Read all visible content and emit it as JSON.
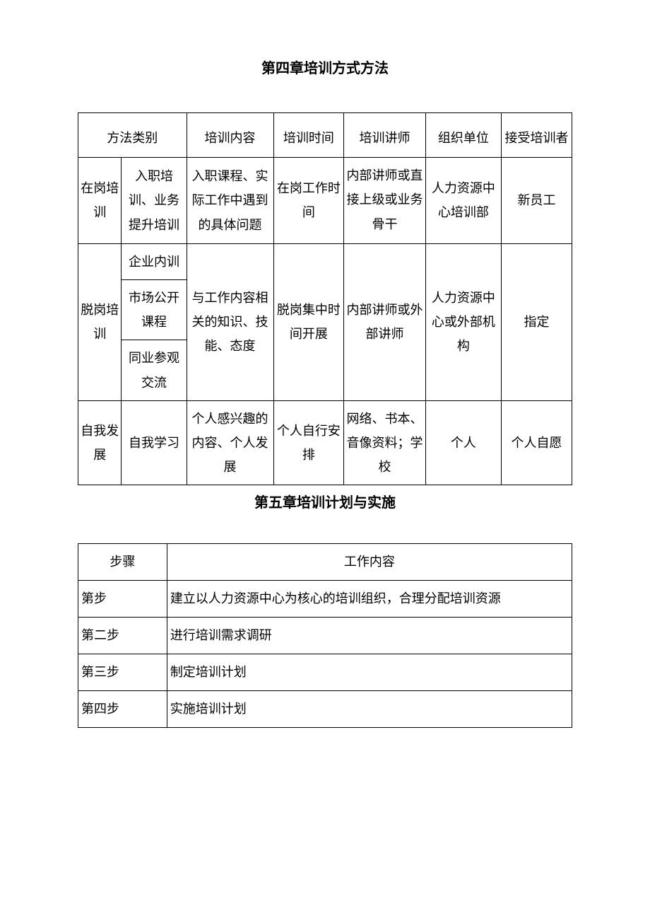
{
  "section1": {
    "title": "第四章培训方式方法",
    "headers": {
      "method_category": "方法类别",
      "training_content": "培训内容",
      "training_time": "培训时间",
      "instructor": "培训讲师",
      "organizer": "组织单位",
      "trainee": "接受培训者"
    },
    "rows": [
      {
        "category_main": "在岗培训",
        "category_sub": "入职培训、业务提升培训",
        "content": "入职课程、实际工作中遇到的具体问题",
        "time": "在岗工作时间",
        "instructor": "内部讲师或直接上级或业务骨干",
        "organizer": "人力资源中心培训部",
        "trainee": "新员工"
      },
      {
        "category_main": "脱岗培训",
        "category_sub1": "企业内训",
        "category_sub2": "市场公开课程",
        "category_sub3": "同业参观交流",
        "content": "与工作内容相关的知识、技能、态度",
        "time": "脱岗集中时间开展",
        "instructor": "内部讲师或外部讲师",
        "organizer": "人力资源中心或外部机构",
        "trainee": "指定"
      },
      {
        "category_main": "自我发展",
        "category_sub": "自我学习",
        "content": "个人感兴趣的内容、个人发展",
        "time": "个人自行安排",
        "instructor": "网络、书本、音像资料；学校",
        "organizer": "个人",
        "trainee": "个人自愿"
      }
    ]
  },
  "section2": {
    "title": "第五章培训计划与实施",
    "headers": {
      "step": "步骤",
      "work_content": "工作内容"
    },
    "rows": [
      {
        "step": "第步",
        "content": "建立以人力资源中心为核心的培训组织，合理分配培训资源"
      },
      {
        "step": "第二步",
        "content": "进行培训需求调研"
      },
      {
        "step": "第三步",
        "content": "制定培训计划"
      },
      {
        "step": "第四步",
        "content": "实施培训计划"
      }
    ]
  },
  "style": {
    "background": "#ffffff",
    "border_color": "#000000",
    "font_size_title": 20,
    "font_size_cell": 18
  }
}
